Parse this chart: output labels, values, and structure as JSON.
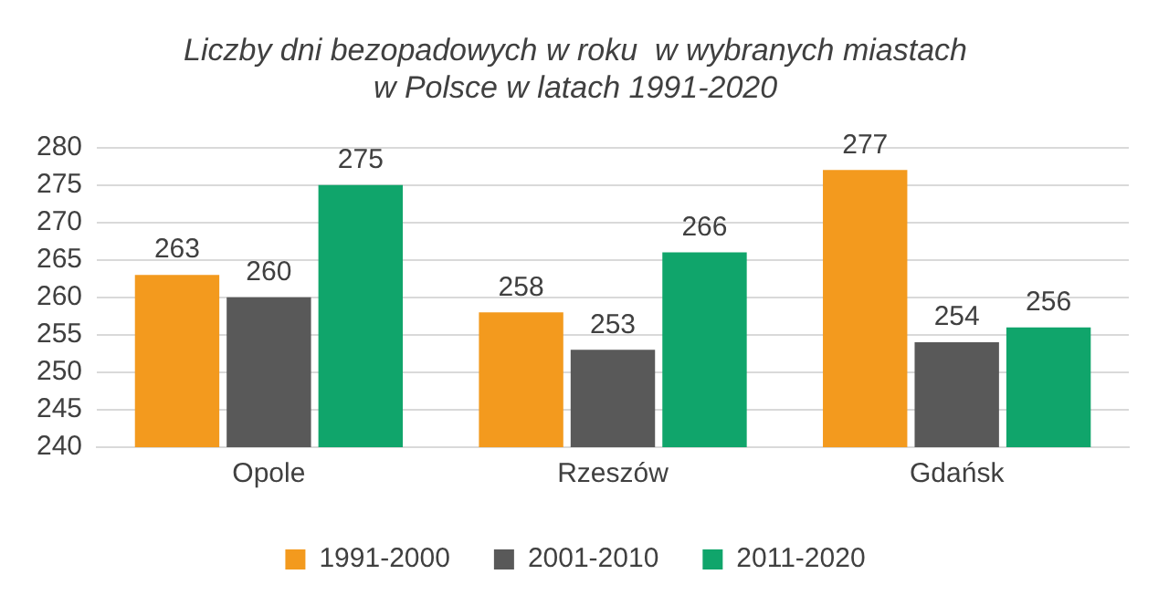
{
  "chart_data": {
    "type": "bar",
    "title": "Liczby dni bezopadowych w roku  w wybranych miastach\nw Polsce w latach 1991-2020",
    "categories": [
      "Opole",
      "Rzeszów",
      "Gdańsk"
    ],
    "series": [
      {
        "name": "1991-2000",
        "color": "#f39a1e",
        "values": [
          263,
          258,
          277
        ]
      },
      {
        "name": "2001-2010",
        "color": "#595959",
        "values": [
          260,
          253,
          254
        ]
      },
      {
        "name": "2011-2020",
        "color": "#10a56b",
        "values": [
          275,
          266,
          256
        ]
      }
    ],
    "ylim": [
      240,
      280
    ],
    "yticks": [
      240,
      245,
      250,
      255,
      260,
      265,
      270,
      275,
      280
    ],
    "grid": "y",
    "legend": "bottom",
    "data_labels": true
  }
}
